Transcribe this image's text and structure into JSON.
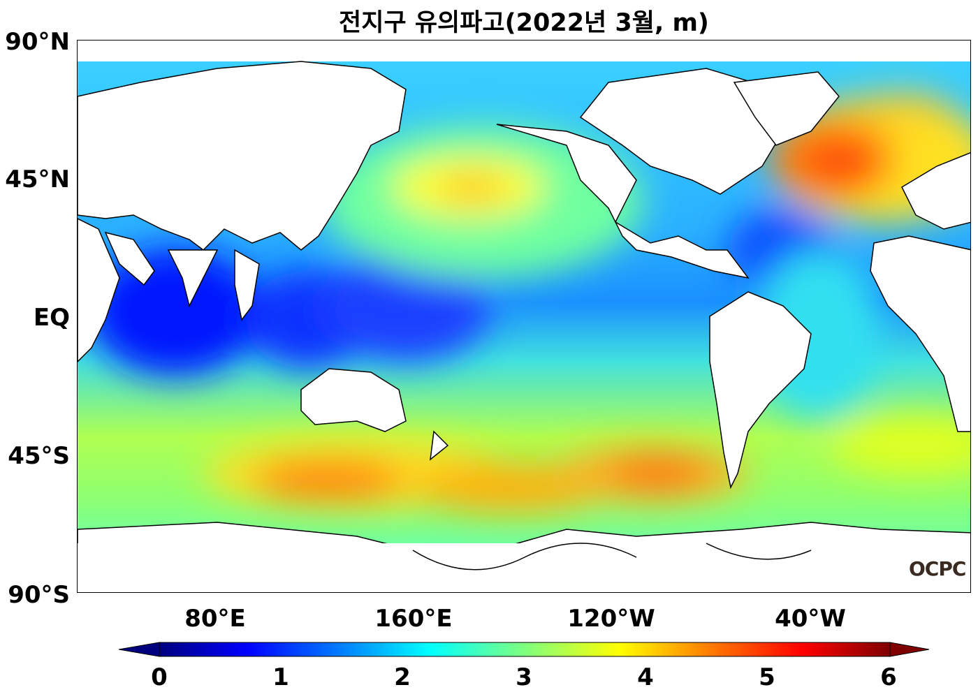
{
  "title": "전지구 유의파고(2022년 3월, m)",
  "watermark": "OCPC",
  "lat_ticks": [
    "90°N",
    "45°N",
    "EQ",
    "45°S",
    "90°S"
  ],
  "lon_ticks": [
    "80°E",
    "160°E",
    "120°W",
    "40°W"
  ],
  "colorbar": {
    "ticks": [
      "0",
      "1",
      "2",
      "3",
      "4",
      "5",
      "6"
    ],
    "min": 0,
    "max": 6,
    "unit": "m",
    "extend": "both",
    "colormap": [
      "#00007f",
      "#0000ff",
      "#007fff",
      "#00ffff",
      "#7fff7f",
      "#ffff00",
      "#ff7f00",
      "#ff0000",
      "#7f0000"
    ]
  },
  "chart_data": {
    "type": "heatmap",
    "title": "전지구 유의파고(2022년 3월, m)",
    "variable": "significant wave height",
    "unit": "m",
    "x_ticks": [
      "80°E",
      "160°E",
      "120°W",
      "40°W"
    ],
    "y_ticks": [
      "90°N",
      "45°N",
      "EQ",
      "45°S",
      "90°S"
    ],
    "value_range": [
      0,
      6
    ],
    "maxima_regions": [
      {
        "region": "North Atlantic",
        "approx_value": 5.2
      },
      {
        "region": "North Pacific",
        "approx_value": 4.3
      },
      {
        "region": "Southern Ocean (Indian sector)",
        "approx_value": 5.0
      },
      {
        "region": "Southern Ocean (Pacific sector)",
        "approx_value": 5.0
      }
    ]
  }
}
